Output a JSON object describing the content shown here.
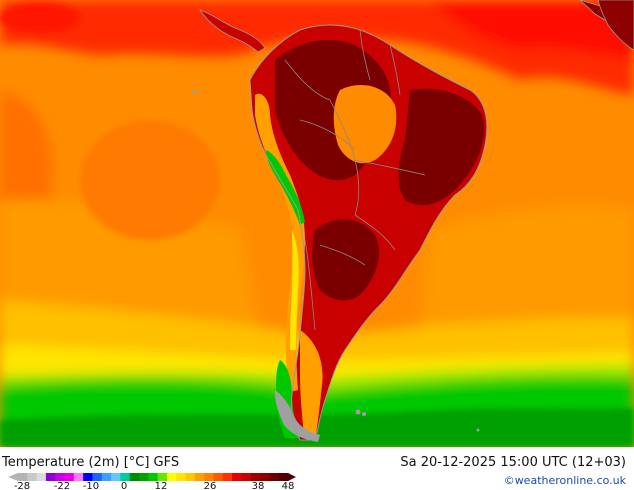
{
  "map": {
    "title": "Temperature (2m) [°C] GFS",
    "datetime": "Sa 20-12-2025 15:00 UTC (12+03)",
    "credit": "©weatheronline.co.uk",
    "legend": {
      "ticks": [
        "-28",
        "-22",
        "-10",
        "0",
        "12",
        "26",
        "38",
        "48"
      ],
      "colors": [
        "#b4b4b4",
        "#c8c8c8",
        "#dcdcdc",
        "#8c00d4",
        "#c800e6",
        "#e600e6",
        "#ff78ff",
        "#0000ff",
        "#1e64ff",
        "#3ca0ff",
        "#64c8ff",
        "#00c8a0",
        "#008c00",
        "#00a000",
        "#00c800",
        "#64e600",
        "#ffff00",
        "#ffe600",
        "#ffc800",
        "#ffa000",
        "#ff8200",
        "#ff5a00",
        "#ff3200",
        "#e60000",
        "#c80000",
        "#a00000",
        "#8c0000",
        "#6e0000",
        "#500000"
      ]
    },
    "colors": {
      "dark_red": "#7a0000",
      "red": "#c80000",
      "bright_red": "#ff1a00",
      "orange": "#ff7800",
      "light_orange": "#ffa000",
      "yellow": "#ffe600",
      "green": "#00c800",
      "dark_green": "#008c00",
      "gray": "#a0a0a0"
    }
  }
}
